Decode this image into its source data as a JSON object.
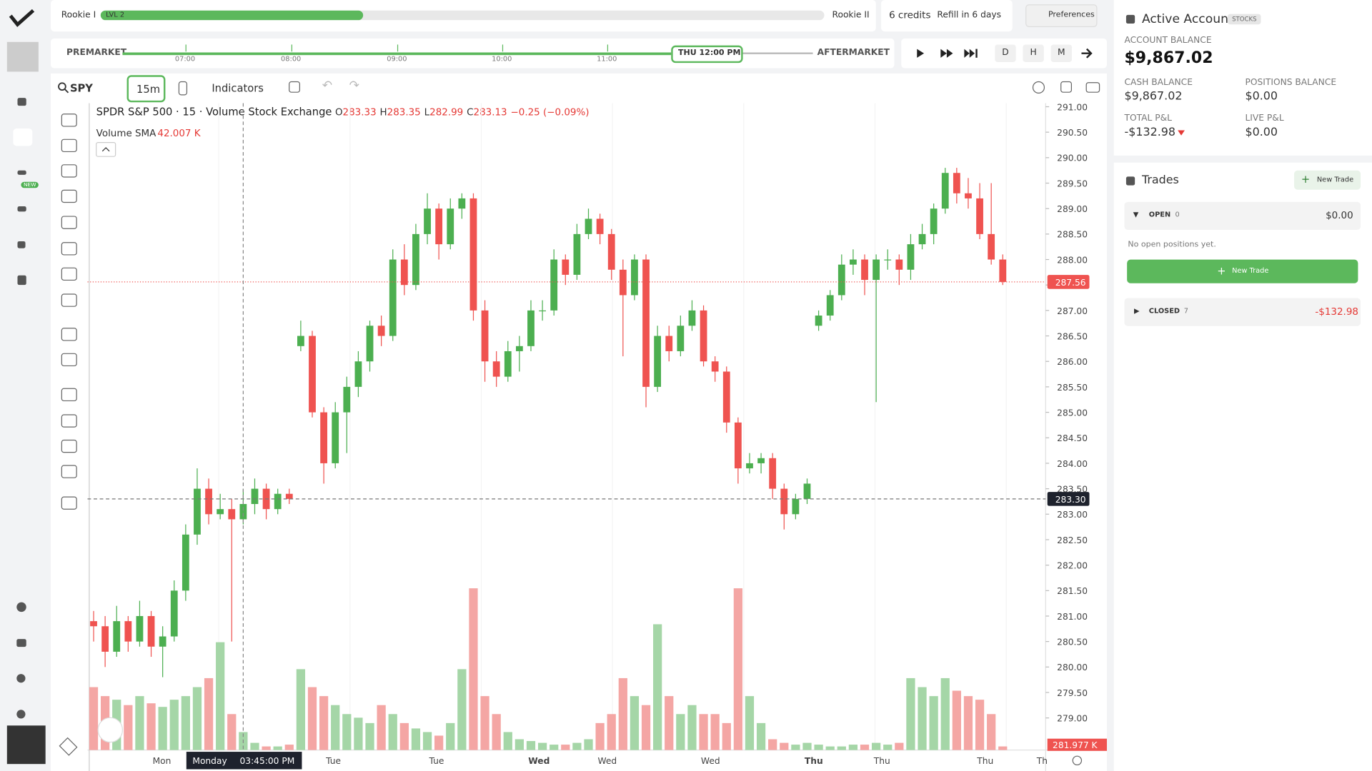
{
  "topbar": {
    "rank_current": "Rookie I",
    "level": "LVL 2",
    "rank_next": "Rookie II",
    "credits": "6 credits",
    "refill": "Refill in 6 days",
    "preferences": "Preferences"
  },
  "sidebar": {
    "badge": "NEW"
  },
  "timeline": {
    "start": "PREMARKET",
    "end": "AFTERMARKET",
    "ticks": [
      "07:00",
      "08:00",
      "09:00",
      "10:00",
      "11:00"
    ],
    "current": "THU 12:00 PM"
  },
  "playback": {
    "intervals": [
      "D",
      "H",
      "M"
    ]
  },
  "toolbar": {
    "symbol": "SPY",
    "timeframe": "15m",
    "indicators": "Indicators"
  },
  "chart_data": {
    "type": "candlestick",
    "title": "SPDR S&P 500 · 15 · Volume Stock Exchange",
    "ohlc": {
      "o_label": "O",
      "o": "283.33",
      "h_label": "H",
      "h": "283.35",
      "l_label": "L",
      "l": "282.99",
      "c_label": "C",
      "c": "283.13",
      "change": "−0.25 (−0.09%)"
    },
    "indicator": "Volume SMA",
    "indicator_value": "42.007 K",
    "up_color": "#4caf50",
    "down_color": "#ef5350",
    "volume_up_color": "#a5d6a7",
    "volume_down_color": "#f4a6a4",
    "ylim": [
      278.37,
      291.07
    ],
    "volume_ylim": [
      0,
      3600
    ],
    "yticks": [
      {
        "value": 291,
        "label": "291.00"
      },
      {
        "value": 290.5,
        "label": "290.50"
      },
      {
        "value": 290,
        "label": "290.00"
      },
      {
        "value": 289.5,
        "label": "289.50"
      },
      {
        "value": 289,
        "label": "289.00"
      },
      {
        "value": 288.5,
        "label": "288.50"
      },
      {
        "value": 288,
        "label": "288.00"
      },
      {
        "value": 287.5,
        "label": "287.50"
      },
      {
        "value": 287,
        "label": "287.00"
      },
      {
        "value": 286.5,
        "label": "286.50"
      },
      {
        "value": 286,
        "label": "286.00"
      },
      {
        "value": 285.5,
        "label": "285.50"
      },
      {
        "value": 285,
        "label": "285.00"
      },
      {
        "value": 284.5,
        "label": "284.50"
      },
      {
        "value": 284,
        "label": "284.00"
      },
      {
        "value": 283.5,
        "label": "283.50"
      },
      {
        "value": 283,
        "label": "283.00"
      },
      {
        "value": 282.5,
        "label": "282.50"
      },
      {
        "value": 282,
        "label": "282.00"
      },
      {
        "value": 281.5,
        "label": "281.50"
      },
      {
        "value": 281,
        "label": "281.00"
      },
      {
        "value": 280.5,
        "label": "280.50"
      },
      {
        "value": 280,
        "label": "280.00"
      },
      {
        "value": 279.5,
        "label": "279.50"
      },
      {
        "value": 279,
        "label": "279.00"
      }
    ],
    "candles": [
      [
        280.9,
        281.1,
        280.5,
        280.8
      ],
      [
        280.8,
        281.0,
        280.0,
        280.3
      ],
      [
        280.3,
        281.2,
        280.2,
        280.9
      ],
      [
        280.9,
        281.0,
        280.3,
        280.5
      ],
      [
        280.5,
        281.3,
        280.4,
        281.0
      ],
      [
        281.0,
        281.1,
        280.2,
        280.4
      ],
      [
        280.4,
        280.8,
        279.8,
        280.6
      ],
      [
        280.6,
        281.7,
        280.5,
        281.5
      ],
      [
        281.5,
        282.8,
        281.3,
        282.6
      ],
      [
        282.6,
        283.9,
        282.4,
        283.5
      ],
      [
        283.5,
        283.7,
        282.8,
        283.0
      ],
      [
        283.0,
        283.4,
        282.9,
        283.1
      ],
      [
        283.1,
        283.3,
        280.5,
        282.9
      ],
      [
        282.9,
        283.5,
        282.8,
        283.2
      ],
      [
        283.2,
        283.7,
        283.0,
        283.5
      ],
      [
        283.5,
        283.6,
        282.9,
        283.1
      ],
      [
        283.1,
        283.5,
        283.0,
        283.4
      ],
      [
        283.4,
        283.5,
        283.2,
        283.3
      ],
      [
        286.3,
        286.8,
        286.2,
        286.5
      ],
      [
        286.5,
        286.6,
        284.9,
        285.0
      ],
      [
        285.0,
        285.1,
        283.6,
        284.0
      ],
      [
        284.0,
        285.2,
        283.9,
        285.0
      ],
      [
        285.0,
        285.7,
        284.2,
        285.5
      ],
      [
        285.5,
        286.2,
        285.3,
        286.0
      ],
      [
        286.0,
        286.8,
        285.8,
        286.7
      ],
      [
        286.7,
        286.9,
        286.3,
        286.5
      ],
      [
        286.5,
        288.2,
        286.4,
        288.0
      ],
      [
        288.0,
        288.3,
        287.3,
        287.5
      ],
      [
        287.5,
        288.7,
        287.4,
        288.5
      ],
      [
        288.5,
        289.3,
        288.3,
        289.0
      ],
      [
        289.0,
        289.1,
        288.0,
        288.3
      ],
      [
        288.3,
        289.2,
        288.2,
        289.0
      ],
      [
        289.0,
        289.3,
        288.8,
        289.2
      ],
      [
        289.2,
        289.3,
        286.8,
        287.0
      ],
      [
        287.0,
        287.2,
        285.6,
        286.0
      ],
      [
        286.0,
        286.2,
        285.5,
        285.7
      ],
      [
        285.7,
        286.4,
        285.6,
        286.2
      ],
      [
        286.2,
        286.5,
        285.8,
        286.3
      ],
      [
        286.3,
        287.2,
        286.2,
        287.0
      ],
      [
        287.0,
        287.2,
        286.8,
        287.0
      ],
      [
        287.0,
        288.2,
        286.9,
        288.0
      ],
      [
        288.0,
        288.1,
        287.5,
        287.7
      ],
      [
        287.7,
        288.7,
        287.6,
        288.5
      ],
      [
        288.5,
        289.0,
        288.4,
        288.8
      ],
      [
        288.8,
        288.9,
        288.3,
        288.5
      ],
      [
        288.5,
        288.6,
        287.6,
        287.8
      ],
      [
        287.8,
        288.0,
        286.1,
        287.3
      ],
      [
        287.3,
        288.1,
        287.2,
        288.0
      ],
      [
        288.0,
        288.1,
        285.1,
        285.5
      ],
      [
        285.5,
        286.7,
        285.4,
        286.5
      ],
      [
        286.5,
        286.7,
        286.0,
        286.2
      ],
      [
        286.2,
        286.9,
        286.1,
        286.7
      ],
      [
        286.7,
        287.2,
        286.6,
        287.0
      ],
      [
        287.0,
        287.1,
        285.9,
        286.0
      ],
      [
        286.0,
        286.1,
        285.6,
        285.8
      ],
      [
        285.8,
        285.9,
        284.6,
        284.8
      ],
      [
        284.8,
        284.9,
        283.6,
        283.9
      ],
      [
        283.9,
        284.2,
        283.8,
        284.0
      ],
      [
        284.0,
        284.2,
        283.8,
        284.1
      ],
      [
        284.1,
        284.2,
        283.3,
        283.5
      ],
      [
        283.5,
        283.6,
        282.7,
        283.0
      ],
      [
        283.0,
        283.4,
        282.9,
        283.3
      ],
      [
        283.3,
        283.7,
        283.2,
        283.6
      ],
      [
        286.7,
        287.0,
        286.6,
        286.9
      ],
      [
        286.9,
        287.4,
        286.8,
        287.3
      ],
      [
        287.3,
        288.1,
        287.2,
        287.9
      ],
      [
        287.9,
        288.2,
        287.7,
        288.0
      ],
      [
        288.0,
        288.1,
        287.3,
        287.6
      ],
      [
        287.6,
        288.1,
        285.2,
        288.0
      ],
      [
        288.0,
        288.2,
        287.8,
        288.0
      ],
      [
        288.0,
        288.1,
        287.5,
        287.8
      ],
      [
        287.8,
        288.5,
        287.6,
        288.3
      ],
      [
        288.3,
        288.7,
        288.2,
        288.5
      ],
      [
        288.5,
        289.1,
        288.3,
        289.0
      ],
      [
        289.0,
        289.8,
        288.9,
        289.7
      ],
      [
        289.7,
        289.8,
        289.1,
        289.3
      ],
      [
        289.3,
        289.6,
        289.0,
        289.2
      ],
      [
        289.2,
        289.5,
        288.4,
        288.5
      ],
      [
        288.5,
        289.5,
        287.9,
        288.0
      ],
      [
        288.0,
        288.1,
        287.5,
        287.56
      ]
    ],
    "volumes": [
      350,
      300,
      280,
      250,
      300,
      260,
      240,
      280,
      300,
      350,
      400,
      600,
      200,
      100,
      40,
      20,
      20,
      30,
      450,
      350,
      300,
      250,
      200,
      180,
      150,
      250,
      200,
      150,
      120,
      100,
      80,
      150,
      450,
      900,
      300,
      200,
      100,
      60,
      50,
      40,
      30,
      30,
      40,
      60,
      150,
      200,
      400,
      300,
      250,
      700,
      300,
      200,
      250,
      200,
      200,
      150,
      900,
      300,
      150,
      60,
      40,
      30,
      40,
      30,
      20,
      20,
      30,
      30,
      40,
      30,
      40,
      400,
      350,
      300,
      400,
      330,
      300,
      280,
      200,
      20
    ],
    "last_price": 287.56,
    "crosshair_price": {
      "value": 283.3,
      "label": "283.30"
    },
    "volume_label": "281.977 K",
    "crosshair_time": {
      "day": "Monday",
      "time": "03:45:00 PM"
    },
    "x_labels": [
      "Mon",
      "Tue",
      "Tue",
      "Wed",
      "Wed",
      "Wed",
      "Thu",
      "Thu",
      "Thu",
      "Th"
    ]
  },
  "account": {
    "title": "Active Account",
    "badge": "STOCKS",
    "balance_label": "ACCOUNT BALANCE",
    "balance": "$9,867.02",
    "cash_label": "CASH BALANCE",
    "cash": "$9,867.02",
    "positions_label": "POSITIONS BALANCE",
    "positions": "$0.00",
    "pnl_label": "TOTAL P&L",
    "pnl": "-$132.98",
    "live_label": "LIVE P&L",
    "live": "$0.00"
  },
  "trades": {
    "title": "Trades",
    "new_trade": "New Trade",
    "open_label": "OPEN",
    "open_count": "0",
    "open_value": "$0.00",
    "empty": "No open positions yet.",
    "new_trade_button": "New Trade",
    "closed_label": "CLOSED",
    "closed_count": "7",
    "closed_value": "-$132.98"
  }
}
